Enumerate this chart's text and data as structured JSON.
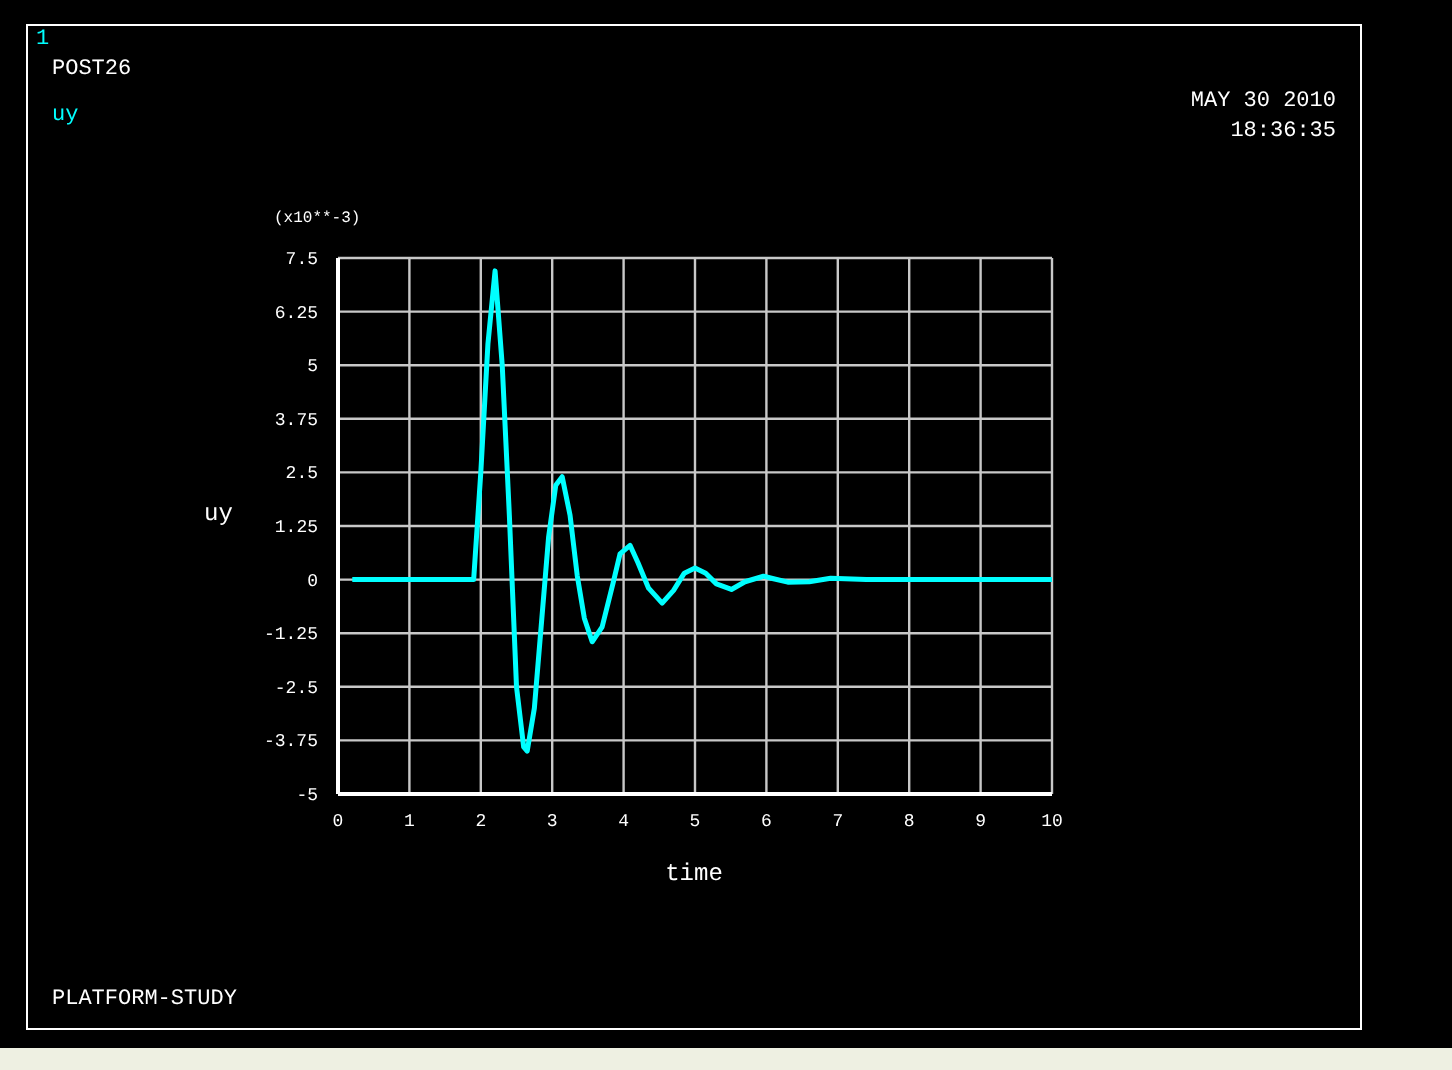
{
  "chart_data": {
    "type": "line",
    "title": "POST26",
    "xlabel": "time",
    "ylabel": "uy",
    "annotations": [
      "1",
      "MAY 30 2010",
      "18:36:35",
      "(x10**-3)",
      "PLATFORM-STUDY"
    ],
    "xlim": [
      0,
      10
    ],
    "xticks": [
      0,
      1,
      2,
      3,
      4,
      5,
      6,
      7,
      8,
      9,
      10
    ],
    "ylim": [
      -5,
      7.5
    ],
    "yticks": [
      -5,
      -3.75,
      -2.5,
      -1.25,
      0,
      1.25,
      2.5,
      3.75,
      5,
      6.25,
      7.5
    ],
    "grid": true,
    "legend": "top left",
    "marker": "none",
    "line_style": "solid",
    "series": [
      {
        "name": "uy",
        "color": "#00ffff",
        "x": [
          0.2,
          1.9,
          2.0,
          2.1,
          2.2,
          2.3,
          2.4,
          2.5,
          2.6,
          2.65,
          2.75,
          2.85,
          2.95,
          3.05,
          3.14,
          3.25,
          3.35,
          3.45,
          3.56,
          3.7,
          3.85,
          3.95,
          4.09,
          4.2,
          4.35,
          4.54,
          4.7,
          4.85,
          5.0,
          5.15,
          5.3,
          5.51,
          5.7,
          5.96,
          6.1,
          6.3,
          6.6,
          6.9,
          7.1,
          7.4,
          10
        ],
        "values": [
          0,
          0,
          2.5,
          5.5,
          7.2,
          5.0,
          1.5,
          -2.5,
          -3.9,
          -4.0,
          -3.0,
          -1.0,
          1.0,
          2.2,
          2.4,
          1.5,
          0.1,
          -0.9,
          -1.45,
          -1.1,
          -0.1,
          0.6,
          0.8,
          0.4,
          -0.2,
          -0.55,
          -0.25,
          0.15,
          0.27,
          0.15,
          -0.1,
          -0.23,
          -0.05,
          0.08,
          0.02,
          -0.06,
          -0.05,
          0.03,
          0.02,
          0,
          0
        ]
      }
    ]
  }
}
